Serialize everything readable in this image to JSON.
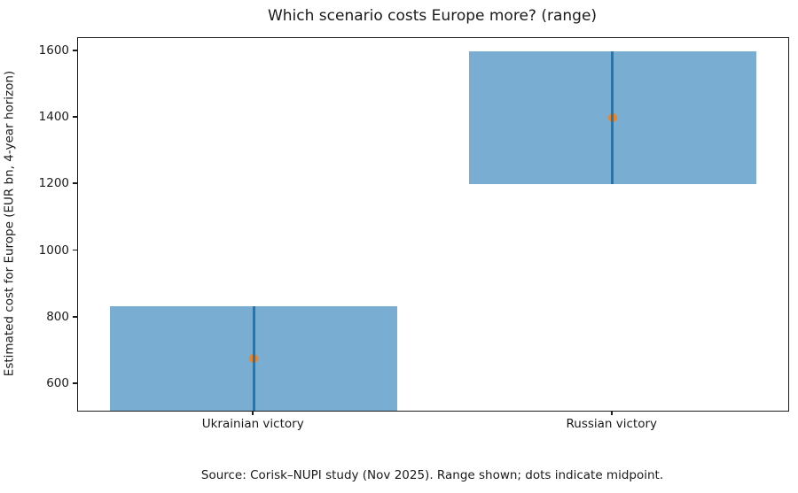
{
  "figure": {
    "title": "Which scenario costs Europe more? (range)",
    "caption": "Source: Corisk–NUPI study (Nov 2025). Range shown; dots indicate midpoint."
  },
  "chart_data": {
    "type": "bar",
    "title": "Which scenario costs Europe more? (range)",
    "xlabel": "",
    "ylabel": "Estimated cost for Europe (EUR bn, 4-year horizon)",
    "categories": [
      "Ukrainian victory",
      "Russian victory"
    ],
    "series": [
      {
        "name": "range_low_eur_bn",
        "values": [
          520,
          1200
        ]
      },
      {
        "name": "range_high_eur_bn",
        "values": [
          835,
          1600
        ]
      },
      {
        "name": "midpoint_eur_bn",
        "values": [
          677.5,
          1400
        ]
      }
    ],
    "yticks": [
      600,
      800,
      1000,
      1200,
      1400,
      1600
    ],
    "ylim": [
      520,
      1640
    ],
    "grid": false,
    "legend": false,
    "bar_width_fraction": 0.8,
    "caption": "Source: Corisk–NUPI study (Nov 2025). Range shown; dots indicate midpoint.",
    "colors": {
      "bar_fill": "rgba(31,119,180,0.6)",
      "range_line": "#1f77b4",
      "midpoint_dot": "#f08322",
      "axis": "#1c1c1c",
      "text": "#1a1a1a"
    }
  }
}
